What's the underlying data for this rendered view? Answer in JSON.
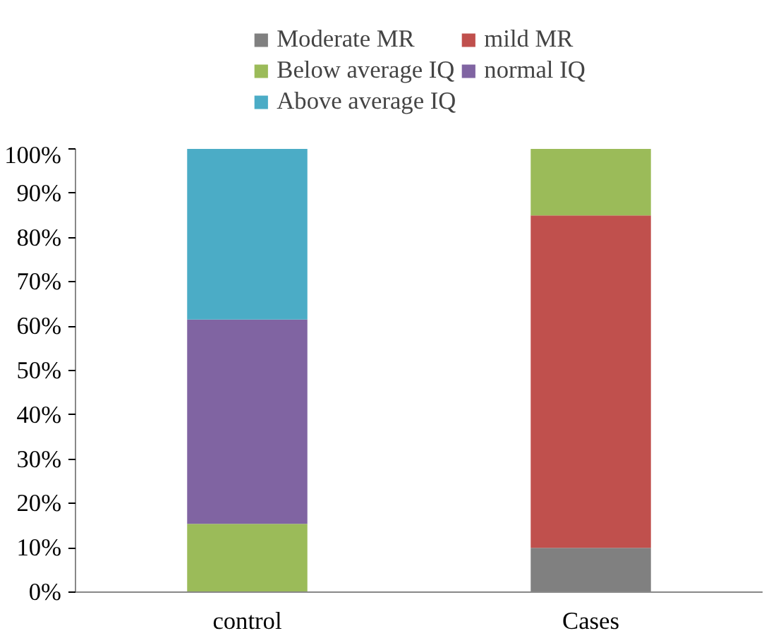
{
  "chart_data": {
    "type": "bar",
    "stacked": true,
    "categories": [
      "control",
      "Cases"
    ],
    "series": [
      {
        "name": "Moderate MR",
        "color": "#808080",
        "values": [
          null,
          10
        ]
      },
      {
        "name": "mild MR",
        "color": "#c0504d",
        "values": [
          null,
          75
        ]
      },
      {
        "name": "Below average IQ",
        "color": "#9bbb59",
        "values": [
          15.4,
          15
        ]
      },
      {
        "name": "normal IQ",
        "color": "#8064a2",
        "values": [
          46.1,
          null
        ]
      },
      {
        "name": "Above average IQ",
        "color": "#4bacc6",
        "values": [
          38.5,
          null
        ]
      }
    ],
    "ylim": [
      0,
      100
    ],
    "yticks": [
      {
        "value": 0,
        "label": "0%"
      },
      {
        "value": 10,
        "label": "10%"
      },
      {
        "value": 20,
        "label": "20%"
      },
      {
        "value": 30,
        "label": "30%"
      },
      {
        "value": 40,
        "label": "40%"
      },
      {
        "value": 50,
        "label": "50%"
      },
      {
        "value": 60,
        "label": "60%"
      },
      {
        "value": 70,
        "label": "70%"
      },
      {
        "value": 80,
        "label": "80%"
      },
      {
        "value": 90,
        "label": "90%"
      },
      {
        "value": 100,
        "label": "100%"
      }
    ],
    "grid": false,
    "legend": "top"
  }
}
